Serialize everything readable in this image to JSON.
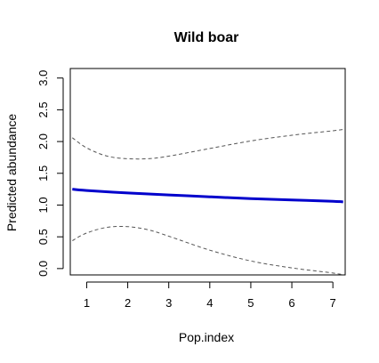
{
  "chart_data": {
    "type": "line",
    "title": "Wild boar",
    "xlabel": "Pop.index",
    "ylabel": "Predicted abundance",
    "xlim": [
      0.6,
      7.3
    ],
    "ylim": [
      -0.1,
      3.15
    ],
    "x_ticks": [
      "1",
      "2",
      "3",
      "4",
      "5",
      "6",
      "7"
    ],
    "y_ticks": [
      "0.0",
      "0.5",
      "1.0",
      "1.5",
      "2.0",
      "2.5",
      "3.0"
    ],
    "grid": false,
    "legend": "none",
    "series": [
      {
        "role": "fit",
        "color": "#0000cc",
        "style": "solid",
        "x": [
          0.65,
          1,
          2,
          3,
          4,
          5,
          6,
          7,
          7.25
        ],
        "y": [
          1.25,
          1.23,
          1.19,
          1.16,
          1.13,
          1.1,
          1.08,
          1.06,
          1.05
        ]
      },
      {
        "role": "upper-bound",
        "color": "#555555",
        "style": "dashed",
        "x": [
          0.65,
          1,
          1.5,
          2,
          2.5,
          3,
          4,
          5,
          6,
          7,
          7.25
        ],
        "y": [
          2.06,
          1.9,
          1.77,
          1.73,
          1.73,
          1.77,
          1.89,
          2.01,
          2.1,
          2.17,
          2.19
        ]
      },
      {
        "role": "lower-bound",
        "color": "#555555",
        "style": "dashed",
        "x": [
          0.65,
          1,
          1.5,
          2,
          2.5,
          3,
          4,
          5,
          6,
          7,
          7.25
        ],
        "y": [
          0.44,
          0.56,
          0.65,
          0.66,
          0.61,
          0.51,
          0.29,
          0.12,
          0.01,
          -0.07,
          -0.1
        ]
      }
    ]
  }
}
